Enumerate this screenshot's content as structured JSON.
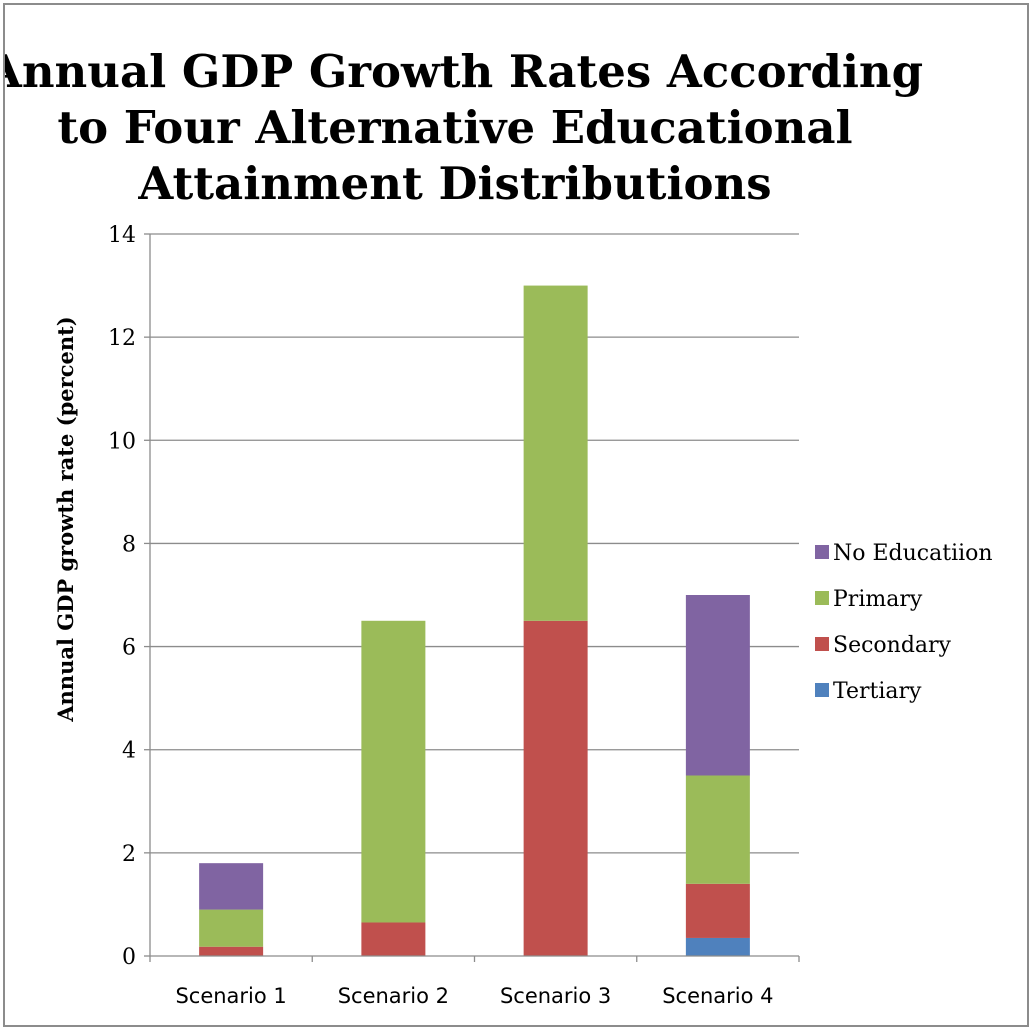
{
  "chart_data": {
    "type": "bar",
    "stacked": true,
    "title": "Annual GDP Growth Rates According to Four Alternative Educational Attainment Distributions",
    "title_lines": [
      "Annual GDP Growth Rates According",
      "to Four Alternative Educational",
      "Attainment Distributions"
    ],
    "xlabel": "",
    "ylabel": "Annual GDP growth rate (percent)",
    "ylim": [
      0,
      14
    ],
    "yticks": [
      0,
      2,
      4,
      6,
      8,
      10,
      12,
      14
    ],
    "grid": true,
    "legend_position": "right",
    "categories": [
      "Scenario 1",
      "Scenario 2",
      "Scenario 3",
      "Scenario 4"
    ],
    "series": [
      {
        "name": "Tertiary",
        "color": "#4F81BD",
        "values": [
          0,
          0,
          0,
          0.35
        ]
      },
      {
        "name": "Secondary",
        "color": "#C0504D",
        "values": [
          0.18,
          0.65,
          6.5,
          1.05
        ]
      },
      {
        "name": "Primary",
        "color": "#9BBB59",
        "values": [
          0.72,
          5.85,
          6.5,
          2.1
        ]
      },
      {
        "name": "No Educatiion",
        "color": "#8064A2",
        "values": [
          0.9,
          0,
          0,
          3.5
        ]
      }
    ],
    "legend_order": [
      "No Educatiion",
      "Primary",
      "Secondary",
      "Tertiary"
    ]
  }
}
